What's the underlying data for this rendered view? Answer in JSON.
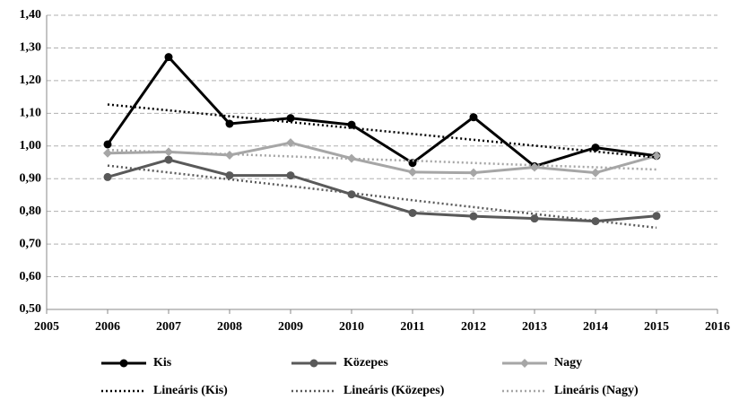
{
  "chart_data": {
    "type": "line",
    "x": [
      2006,
      2007,
      2008,
      2009,
      2010,
      2011,
      2012,
      2013,
      2014,
      2015
    ],
    "xlim": [
      2005,
      2016
    ],
    "xticks": [
      2005,
      2006,
      2007,
      2008,
      2009,
      2010,
      2011,
      2012,
      2013,
      2014,
      2015,
      2016
    ],
    "ylim": [
      0.5,
      1.4
    ],
    "yticks": [
      {
        "value": 0.5,
        "label": "0,50"
      },
      {
        "value": 0.6,
        "label": "0,60"
      },
      {
        "value": 0.7,
        "label": "0,70"
      },
      {
        "value": 0.8,
        "label": "0,80"
      },
      {
        "value": 0.9,
        "label": "0,90"
      },
      {
        "value": 1.0,
        "label": "1,00"
      },
      {
        "value": 1.1,
        "label": "1,10"
      },
      {
        "value": 1.2,
        "label": "1,20"
      },
      {
        "value": 1.3,
        "label": "1,30"
      },
      {
        "value": 1.4,
        "label": "1,40"
      }
    ],
    "grid": true,
    "series": [
      {
        "name": "Kis",
        "color": "#000000",
        "marker": "circle",
        "values": [
          1.005,
          1.272,
          1.068,
          1.085,
          1.065,
          0.948,
          1.088,
          0.938,
          0.995,
          0.97
        ]
      },
      {
        "name": "Közepes",
        "color": "#595959",
        "marker": "circle",
        "values": [
          0.905,
          0.958,
          0.91,
          0.91,
          0.852,
          0.795,
          0.785,
          0.778,
          0.77,
          0.786
        ]
      },
      {
        "name": "Nagy",
        "color": "#a6a6a6",
        "marker": "diamond",
        "values": [
          0.978,
          0.982,
          0.972,
          1.01,
          0.962,
          0.92,
          0.918,
          0.935,
          0.918,
          0.97
        ]
      },
      {
        "name": "Lineáris (Kis)",
        "color": "#000000",
        "dash": "dotted",
        "values": [
          1.127,
          1.109,
          1.091,
          1.073,
          1.055,
          1.037,
          1.019,
          1.001,
          0.983,
          0.965
        ]
      },
      {
        "name": "Lineáris (Közepes)",
        "color": "#595959",
        "dash": "dotted",
        "values": [
          0.94,
          0.919,
          0.898,
          0.877,
          0.856,
          0.834,
          0.813,
          0.792,
          0.771,
          0.75
        ]
      },
      {
        "name": "Lineáris (Nagy)",
        "color": "#a6a6a6",
        "dash": "dotted",
        "values": [
          0.988,
          0.981,
          0.975,
          0.968,
          0.961,
          0.955,
          0.948,
          0.941,
          0.935,
          0.928
        ]
      }
    ]
  }
}
